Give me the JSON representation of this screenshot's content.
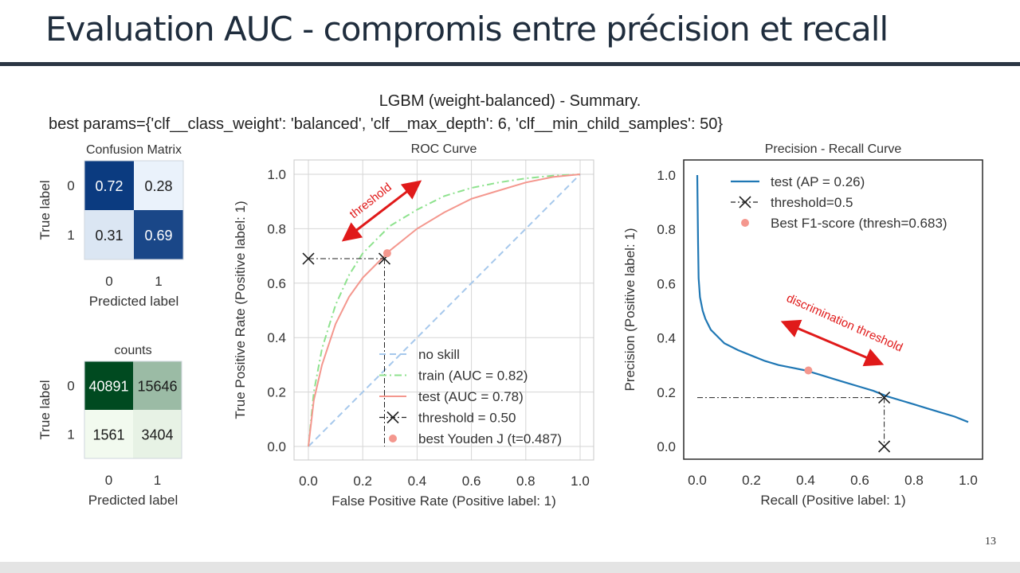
{
  "slide": {
    "title": "Evaluation AUC - compromis entre précision et recall",
    "page_number": "13"
  },
  "figure": {
    "title": "LGBM (weight-balanced) - Summary.",
    "subtitle": "best params={'clf__class_weight': 'balanced', 'clf__max_depth': 6, 'clf__min_child_samples': 50}"
  },
  "colors": {
    "title": "#1f2d3d",
    "rule": "#2b3644",
    "no_skill": "#a6c8ec",
    "train": "#8ee28e",
    "test_roc": "#f4978e",
    "test_pr": "#1f77b4",
    "threshold": "#222222",
    "annotation": "#e01a1a"
  },
  "chart_data": [
    {
      "type": "heatmap",
      "title": "Confusion Matrix",
      "xlabel": "Predicted label",
      "ylabel": "True label",
      "x_ticks": [
        "0",
        "1"
      ],
      "y_ticks": [
        "0",
        "1"
      ],
      "colormap": "Blues",
      "values": [
        [
          0.72,
          0.28
        ],
        [
          0.31,
          0.69
        ]
      ],
      "labels": [
        [
          "0.72",
          "0.28"
        ],
        [
          "0.31",
          "0.69"
        ]
      ]
    },
    {
      "type": "heatmap",
      "title": "counts",
      "xlabel": "Predicted label",
      "ylabel": "True label",
      "x_ticks": [
        "0",
        "1"
      ],
      "y_ticks": [
        "0",
        "1"
      ],
      "colormap": "Greens",
      "values": [
        [
          40891,
          15646
        ],
        [
          1561,
          3404
        ]
      ],
      "labels": [
        [
          "40891",
          "15646"
        ],
        [
          "1561",
          "3404"
        ]
      ]
    },
    {
      "type": "line",
      "title": "ROC Curve",
      "xlabel": "False Positive Rate (Positive label: 1)",
      "ylabel": "True Positive Rate (Positive label: 1)",
      "xlim": [
        0,
        1
      ],
      "ylim": [
        0,
        1
      ],
      "x_ticks": [
        "0.0",
        "0.2",
        "0.4",
        "0.6",
        "0.8",
        "1.0"
      ],
      "y_ticks": [
        "0.0",
        "0.2",
        "0.4",
        "0.6",
        "0.8",
        "1.0"
      ],
      "grid": true,
      "legend_position": "bottom-right",
      "series": [
        {
          "name": "no skill",
          "style": "dashed",
          "x": [
            0,
            1
          ],
          "y": [
            0,
            1
          ]
        },
        {
          "name": "train (AUC = 0.82)",
          "style": "dashdot",
          "x": [
            0,
            0.02,
            0.05,
            0.1,
            0.15,
            0.2,
            0.3,
            0.4,
            0.5,
            0.6,
            0.7,
            0.8,
            0.9,
            1.0
          ],
          "y": [
            0,
            0.2,
            0.36,
            0.52,
            0.63,
            0.71,
            0.81,
            0.87,
            0.92,
            0.95,
            0.97,
            0.985,
            0.995,
            1.0
          ]
        },
        {
          "name": "test (AUC = 0.78)",
          "style": "solid",
          "x": [
            0,
            0.02,
            0.05,
            0.1,
            0.15,
            0.2,
            0.3,
            0.4,
            0.5,
            0.6,
            0.7,
            0.8,
            0.9,
            1.0
          ],
          "y": [
            0,
            0.17,
            0.3,
            0.45,
            0.55,
            0.62,
            0.72,
            0.8,
            0.86,
            0.91,
            0.94,
            0.97,
            0.99,
            1.0
          ]
        }
      ],
      "threshold": {
        "name": "threshold = 0.50",
        "x": 0.28,
        "y": 0.69
      },
      "best_point": {
        "name": "best Youden J (t=0.487)",
        "x": 0.29,
        "y": 0.71
      },
      "annotation": {
        "text": "threshold"
      }
    },
    {
      "type": "line",
      "title": "Precision - Recall Curve",
      "xlabel": "Recall (Positive label: 1)",
      "ylabel": "Precision (Positive label: 1)",
      "xlim": [
        0,
        1
      ],
      "ylim": [
        0,
        1
      ],
      "x_ticks": [
        "0.0",
        "0.2",
        "0.4",
        "0.6",
        "0.8",
        "1.0"
      ],
      "y_ticks": [
        "0.0",
        "0.2",
        "0.4",
        "0.6",
        "0.8",
        "1.0"
      ],
      "grid": false,
      "legend_position": "top-right",
      "series": [
        {
          "name": "test (AP = 0.26)",
          "style": "solid",
          "x": [
            0.0,
            0.003,
            0.005,
            0.01,
            0.02,
            0.03,
            0.05,
            0.08,
            0.1,
            0.15,
            0.2,
            0.25,
            0.3,
            0.35,
            0.4,
            0.45,
            0.5,
            0.55,
            0.6,
            0.65,
            0.7,
            0.75,
            0.8,
            0.85,
            0.9,
            0.95,
            1.0
          ],
          "y": [
            1.0,
            0.75,
            0.62,
            0.55,
            0.5,
            0.47,
            0.43,
            0.4,
            0.38,
            0.355,
            0.335,
            0.315,
            0.3,
            0.29,
            0.28,
            0.265,
            0.25,
            0.235,
            0.22,
            0.205,
            0.185,
            0.17,
            0.155,
            0.14,
            0.125,
            0.11,
            0.09
          ]
        }
      ],
      "threshold": {
        "name": "threshold=0.5",
        "x": 0.69,
        "y": 0.18,
        "x_marker_y": 0.0
      },
      "best_point": {
        "name": "Best F1-score (thresh=0.683)",
        "x": 0.41,
        "y": 0.28
      },
      "annotation": {
        "text": "discrimination threshold"
      }
    }
  ]
}
